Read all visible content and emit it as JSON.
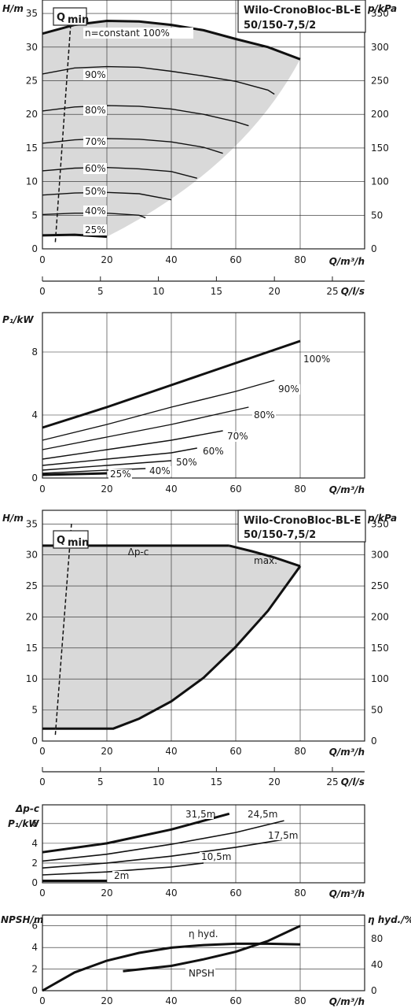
{
  "chart_data": [
    {
      "type": "line",
      "title": "Wilo-CronoBloc-BL-E",
      "subtitle": "50/150-7,5/2",
      "xlabel": "Q/m³/h",
      "ylabel": "H/m",
      "y2label": "p/kPa",
      "xlim": [
        0,
        100
      ],
      "ylim": [
        0,
        37
      ],
      "xticks": [
        "0",
        "20",
        "40",
        "60",
        "80"
      ],
      "yticks": [
        "0",
        "5",
        "10",
        "15",
        "20",
        "25",
        "30",
        "35"
      ],
      "y2ticks": [
        "0",
        "50",
        "100",
        "150",
        "200",
        "250",
        "300",
        "350"
      ],
      "qmin_label": "Q",
      "qmin_sub": "min",
      "qmin_line": [
        [
          4,
          1
        ],
        [
          9,
          35
        ]
      ],
      "series": [
        {
          "name": "n=constant 100%",
          "x": [
            0,
            10,
            20,
            30,
            40,
            50,
            60,
            70,
            80
          ],
          "y": [
            32,
            33.3,
            33.9,
            33.8,
            33.3,
            32.5,
            31.2,
            30,
            28.2
          ]
        },
        {
          "name": "90%",
          "x": [
            0,
            10,
            20,
            30,
            40,
            50,
            60,
            70,
            72
          ],
          "y": [
            26,
            26.9,
            27.1,
            27,
            26.4,
            25.7,
            24.9,
            23.6,
            23
          ]
        },
        {
          "name": "80%",
          "x": [
            0,
            10,
            20,
            30,
            40,
            50,
            60,
            64
          ],
          "y": [
            20.5,
            21.1,
            21.3,
            21.2,
            20.8,
            20,
            18.9,
            18.3
          ]
        },
        {
          "name": "70%",
          "x": [
            0,
            10,
            20,
            30,
            40,
            50,
            56
          ],
          "y": [
            15.7,
            16.2,
            16.4,
            16.3,
            15.9,
            15.1,
            14.2
          ]
        },
        {
          "name": "60%",
          "x": [
            0,
            10,
            20,
            30,
            40,
            48
          ],
          "y": [
            11.6,
            12,
            12.1,
            11.9,
            11.5,
            10.5
          ]
        },
        {
          "name": "50%",
          "x": [
            0,
            10,
            20,
            30,
            40
          ],
          "y": [
            8,
            8.3,
            8.4,
            8.2,
            7.3
          ]
        },
        {
          "name": "40%",
          "x": [
            0,
            10,
            20,
            30,
            32
          ],
          "y": [
            5.1,
            5.3,
            5.3,
            5,
            4.6
          ]
        },
        {
          "name": "25%",
          "x": [
            0,
            10,
            20
          ],
          "y": [
            2,
            2.1,
            1.8
          ]
        }
      ]
    },
    {
      "type": "axis",
      "xlabel": "Q/l/s",
      "xlim": [
        0,
        25
      ],
      "xticks": [
        "0",
        "5",
        "10",
        "15",
        "20",
        "25"
      ]
    },
    {
      "type": "line",
      "ylabel": "P₁/kW",
      "xlabel": "Q/m³/h",
      "xlim": [
        0,
        100
      ],
      "ylim": [
        0,
        10.5
      ],
      "xticks": [
        "0",
        "20",
        "40",
        "60",
        "80"
      ],
      "yticks": [
        "0",
        "4",
        "8"
      ],
      "series": [
        {
          "name": "100%",
          "x": [
            0,
            20,
            40,
            60,
            80
          ],
          "y": [
            3.2,
            4.5,
            5.9,
            7.3,
            8.7
          ]
        },
        {
          "name": "90%",
          "x": [
            0,
            20,
            40,
            60,
            72
          ],
          "y": [
            2.4,
            3.4,
            4.5,
            5.5,
            6.2
          ]
        },
        {
          "name": "80%",
          "x": [
            0,
            20,
            40,
            64
          ],
          "y": [
            1.8,
            2.6,
            3.4,
            4.5
          ]
        },
        {
          "name": "70%",
          "x": [
            0,
            20,
            40,
            56
          ],
          "y": [
            1.2,
            1.8,
            2.4,
            3.0
          ]
        },
        {
          "name": "60%",
          "x": [
            0,
            20,
            40,
            48
          ],
          "y": [
            0.8,
            1.2,
            1.6,
            1.9
          ]
        },
        {
          "name": "50%",
          "x": [
            0,
            20,
            40
          ],
          "y": [
            0.5,
            0.8,
            1.1
          ]
        },
        {
          "name": "40%",
          "x": [
            0,
            20,
            32
          ],
          "y": [
            0.3,
            0.5,
            0.6
          ]
        },
        {
          "name": "25%",
          "x": [
            0,
            20
          ],
          "y": [
            0.2,
            0.3
          ]
        }
      ]
    },
    {
      "type": "line",
      "title": "Wilo-CronoBloc-BL-E",
      "subtitle": "50/150-7,5/2",
      "xlabel": "Q/m³/h",
      "ylabel": "H/m",
      "y2label": "p/kPa",
      "xlim": [
        0,
        100
      ],
      "ylim": [
        0,
        37
      ],
      "xticks": [
        "0",
        "20",
        "40",
        "60",
        "80"
      ],
      "yticks": [
        "0",
        "5",
        "10",
        "15",
        "20",
        "25",
        "30",
        "35"
      ],
      "y2ticks": [
        "0",
        "50",
        "100",
        "150",
        "200",
        "250",
        "300",
        "350"
      ],
      "qmin_label": "Q",
      "qmin_sub": "min",
      "qmin_line": [
        [
          4,
          1
        ],
        [
          9,
          35
        ]
      ],
      "annotations": [
        "Δp-c",
        "max."
      ],
      "series": [
        {
          "name": "Δp-c",
          "x": [
            0,
            20,
            40,
            58
          ],
          "y": [
            31.5,
            31.5,
            31.5,
            31.5
          ]
        },
        {
          "name": "max.",
          "x": [
            58,
            65,
            72,
            80
          ],
          "y": [
            31.5,
            30.6,
            29.6,
            28.2
          ]
        },
        {
          "name": "min",
          "x": [
            4,
            22,
            30,
            40,
            50,
            60,
            70,
            80
          ],
          "y": [
            2,
            2,
            3.6,
            6.4,
            10.2,
            15.2,
            21,
            28.2
          ]
        }
      ]
    },
    {
      "type": "axis",
      "xlabel": "Q/l/s",
      "xlim": [
        0,
        25
      ],
      "xticks": [
        "0",
        "5",
        "10",
        "15",
        "20",
        "25"
      ]
    },
    {
      "type": "line",
      "ylabel": "Δp-c P₁/kW",
      "xlabel": "Q/m³/h",
      "xlim": [
        0,
        100
      ],
      "ylim": [
        0,
        8
      ],
      "xticks": [
        "0",
        "20",
        "40",
        "60",
        "80"
      ],
      "yticks": [
        "0",
        "2",
        "4",
        "6"
      ],
      "series": [
        {
          "name": "31,5m",
          "x": [
            0,
            20,
            40,
            58
          ],
          "y": [
            3.1,
            4.0,
            5.4,
            7.0
          ]
        },
        {
          "name": "24,5m",
          "x": [
            0,
            20,
            40,
            60,
            75
          ],
          "y": [
            2.2,
            2.9,
            3.9,
            5.1,
            6.3
          ]
        },
        {
          "name": "17,5m",
          "x": [
            0,
            20,
            40,
            60,
            75
          ],
          "y": [
            1.5,
            2.0,
            2.7,
            3.6,
            4.4
          ]
        },
        {
          "name": "10,5m",
          "x": [
            0,
            20,
            40,
            50
          ],
          "y": [
            0.8,
            1.1,
            1.6,
            2.0
          ]
        },
        {
          "name": "2m",
          "x": [
            0,
            20
          ],
          "y": [
            0.2,
            0.2
          ]
        }
      ]
    },
    {
      "type": "line",
      "ylabel": "NPSH/m",
      "y2label": "η hyd./%",
      "xlabel": "Q/m³/h",
      "xlim": [
        0,
        100
      ],
      "ylim": [
        0,
        7
      ],
      "xticks": [
        "0",
        "20",
        "40",
        "60",
        "80"
      ],
      "yticks": [
        "0",
        "2",
        "4",
        "6"
      ],
      "y2ticks": [
        "0",
        "40",
        "80"
      ],
      "series": [
        {
          "name": "η hyd.",
          "x": [
            0,
            10,
            20,
            30,
            40,
            50,
            60,
            70,
            80
          ],
          "y": [
            0,
            28,
            46,
            58,
            66,
            70,
            72,
            72,
            71
          ]
        },
        {
          "name": "NPSH",
          "x": [
            25,
            40,
            50,
            60,
            70,
            80
          ],
          "y": [
            1.8,
            2.3,
            2.9,
            3.6,
            4.6,
            6.0
          ]
        }
      ]
    }
  ]
}
